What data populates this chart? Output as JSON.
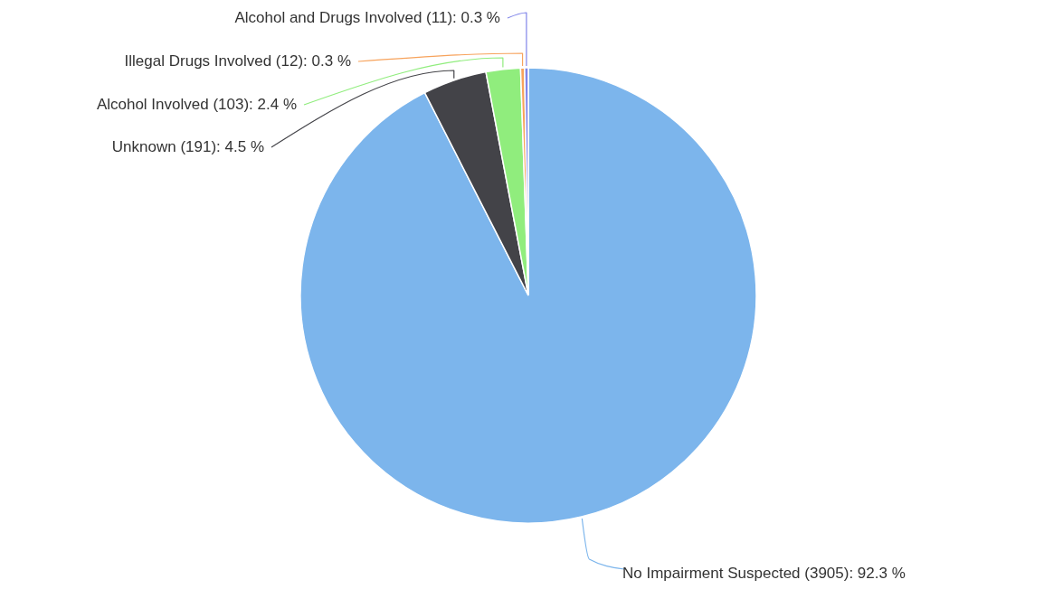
{
  "chart_data": {
    "type": "pie",
    "categories": [
      "No Impairment Suspected",
      "Unknown",
      "Alcohol Involved",
      "Illegal Drugs Involved",
      "Alcohol and Drugs Involved"
    ],
    "values": [
      3905,
      191,
      103,
      12,
      11
    ],
    "colors": [
      "#7cb5ec",
      "#434348",
      "#90ed7d",
      "#f7a35c",
      "#8085e9"
    ],
    "value_labels": [
      "(3905): 92.3 %",
      "(191): 4.5 %",
      "(103): 2.4 %",
      "(12): 0.3 %",
      "(11): 0.3 %"
    ]
  }
}
